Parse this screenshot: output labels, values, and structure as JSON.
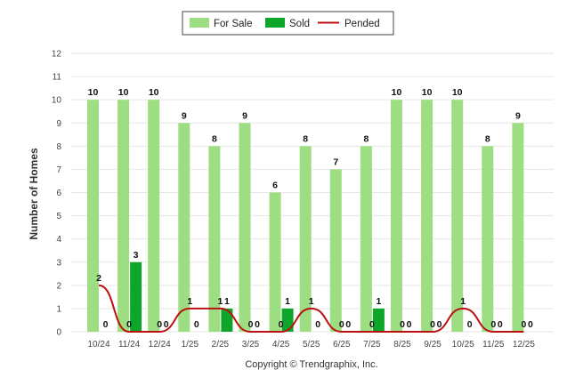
{
  "chart_data": {
    "type": "bar",
    "ylabel": "Number of Homes",
    "xlabel": "",
    "ylim": [
      0,
      12
    ],
    "yticks": [
      0,
      1,
      2,
      3,
      4,
      5,
      6,
      7,
      8,
      9,
      10,
      11,
      12
    ],
    "grid": true,
    "legend_position": "top-center",
    "categories": [
      "10/24",
      "11/24",
      "12/24",
      "1/25",
      "2/25",
      "3/25",
      "4/25",
      "5/25",
      "6/25",
      "7/25",
      "8/25",
      "9/25",
      "10/25",
      "11/25",
      "12/25"
    ],
    "series": [
      {
        "name": "For Sale",
        "kind": "bar",
        "color": "#9ede82",
        "values": [
          10,
          10,
          10,
          9,
          8,
          9,
          6,
          8,
          7,
          8,
          10,
          10,
          10,
          8,
          9
        ]
      },
      {
        "name": "Sold",
        "kind": "bar",
        "color": "#0ea62a",
        "values": [
          0,
          3,
          0,
          0,
          1,
          0,
          1,
          0,
          0,
          1,
          0,
          0,
          0,
          0,
          0
        ]
      },
      {
        "name": "Pended",
        "kind": "line",
        "color": "#bb1111",
        "values": [
          2,
          0,
          0,
          1,
          1,
          0,
          0,
          1,
          0,
          0,
          0,
          0,
          1,
          0,
          0
        ]
      }
    ],
    "footer": "Copyright © Trendgraphix, Inc."
  }
}
